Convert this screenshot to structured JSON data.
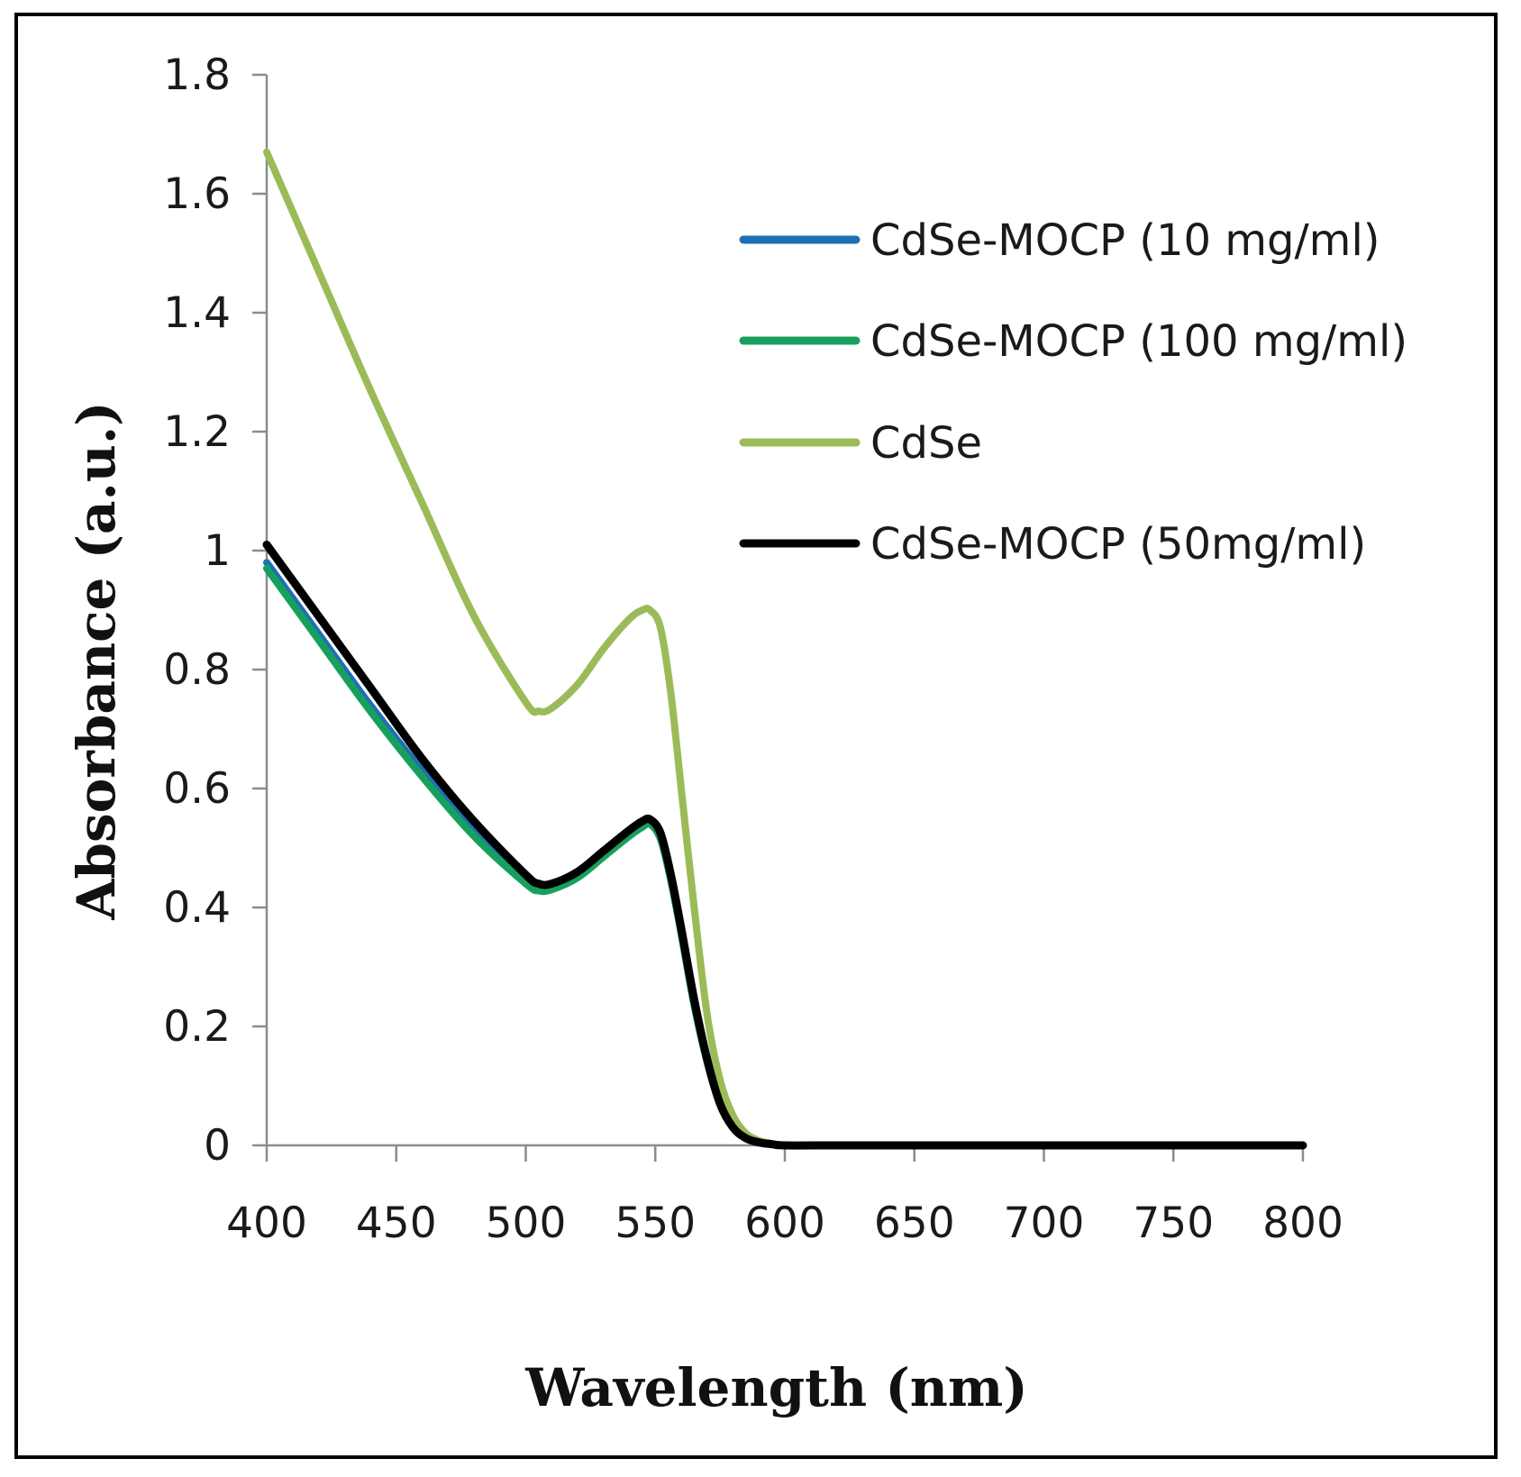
{
  "chart_data": {
    "type": "line",
    "title": "",
    "xlabel": "Wavelength  (nm)",
    "ylabel": "Absorbance  (a.u.)",
    "xlim": [
      400,
      800
    ],
    "ylim": [
      0,
      1.8
    ],
    "xticks": [
      400,
      450,
      500,
      550,
      600,
      650,
      700,
      750,
      800
    ],
    "xtick_labels": [
      "400",
      "450",
      "500",
      "550",
      "600",
      "650",
      "700",
      "750",
      "800"
    ],
    "yticks": [
      0,
      0.2,
      0.4,
      0.6,
      0.8,
      1.0,
      1.2,
      1.4,
      1.6,
      1.8
    ],
    "ytick_labels": [
      "0",
      "0.2",
      "0.4",
      "0.6",
      "0.8",
      "1",
      "1.2",
      "1.4",
      "1.6",
      "1.8"
    ],
    "grid": false,
    "legend_position": "top-right",
    "x": [
      400,
      420,
      440,
      460,
      480,
      500,
      505,
      510,
      520,
      530,
      540,
      545,
      548,
      552,
      556,
      560,
      565,
      570,
      575,
      580,
      585,
      590,
      595,
      600,
      620,
      650,
      700,
      750,
      800
    ],
    "series": [
      {
        "name": "CdSe-MOCP (10 mg/ml)",
        "color": "#1f6fb4",
        "values": [
          0.98,
          0.86,
          0.74,
          0.63,
          0.53,
          0.45,
          0.435,
          0.435,
          0.455,
          0.49,
          0.525,
          0.54,
          0.545,
          0.52,
          0.45,
          0.36,
          0.24,
          0.14,
          0.07,
          0.03,
          0.012,
          0.005,
          0.002,
          0.0,
          0.0,
          0.0,
          0.0,
          0.0,
          0.0
        ]
      },
      {
        "name": "CdSe-MOCP (100 mg/ml)",
        "color": "#17a05d",
        "values": [
          0.97,
          0.85,
          0.73,
          0.62,
          0.52,
          0.44,
          0.428,
          0.43,
          0.45,
          0.485,
          0.52,
          0.535,
          0.54,
          0.515,
          0.445,
          0.355,
          0.235,
          0.14,
          0.07,
          0.03,
          0.012,
          0.005,
          0.002,
          0.0,
          0.0,
          0.0,
          0.0,
          0.0,
          0.0
        ]
      },
      {
        "name": "CdSe",
        "color": "#9bbb59",
        "values": [
          1.67,
          1.47,
          1.27,
          1.08,
          0.89,
          0.745,
          0.73,
          0.735,
          0.775,
          0.835,
          0.885,
          0.9,
          0.9,
          0.87,
          0.76,
          0.6,
          0.4,
          0.22,
          0.11,
          0.05,
          0.02,
          0.008,
          0.003,
          0.0,
          0.0,
          0.0,
          0.0,
          0.0,
          0.0
        ]
      },
      {
        "name": "CdSe-MOCP (50mg/ml)",
        "color": "#000000",
        "values": [
          1.01,
          0.89,
          0.77,
          0.65,
          0.545,
          0.455,
          0.44,
          0.44,
          0.46,
          0.495,
          0.53,
          0.545,
          0.548,
          0.525,
          0.455,
          0.365,
          0.245,
          0.145,
          0.07,
          0.03,
          0.012,
          0.005,
          0.002,
          0.0,
          0.0,
          0.0,
          0.0,
          0.0,
          0.0
        ]
      }
    ],
    "legend_order": [
      0,
      1,
      2,
      3
    ]
  }
}
